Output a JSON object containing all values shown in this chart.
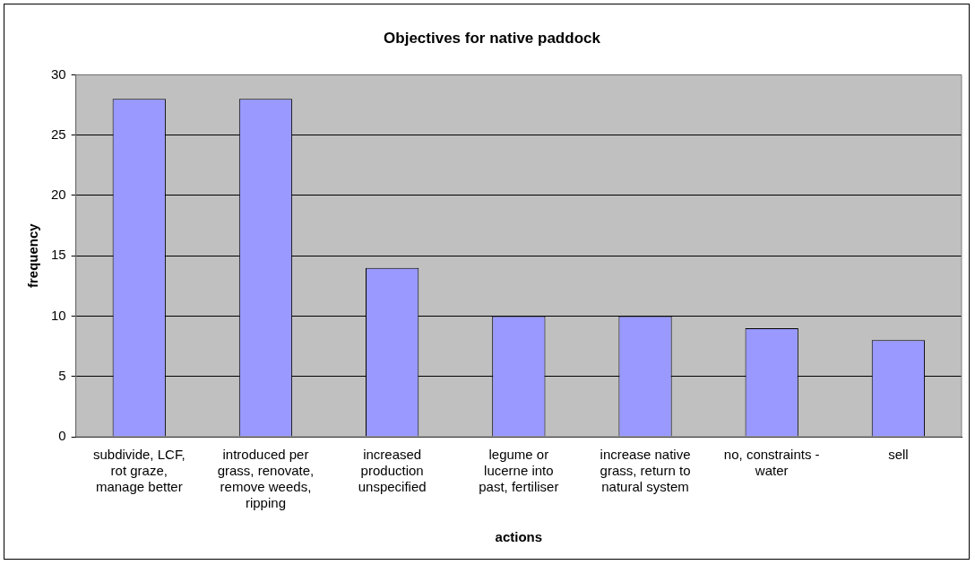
{
  "chart_data": {
    "type": "bar",
    "title": "Objectives for native paddock",
    "xlabel": "actions",
    "ylabel": "frequency",
    "categories": [
      "subdivide, LCF, rot graze, manage better",
      "introduced per grass, renovate, remove weeds, ripping",
      "increased production unspecified",
      "legume or lucerne into past, fertiliser",
      "increase native grass, return to natural system",
      "no, constraints - water",
      "sell"
    ],
    "values": [
      28,
      28,
      14,
      10,
      10,
      9,
      8
    ],
    "color": "#9999ff",
    "ylim": [
      0,
      30
    ],
    "yticks": [
      0,
      5,
      10,
      15,
      20,
      25,
      30
    ],
    "grid": "y",
    "legend": false
  }
}
